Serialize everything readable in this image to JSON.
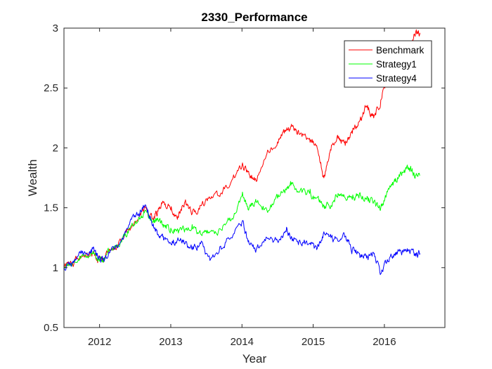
{
  "chart_data": {
    "type": "line",
    "title": "2330_Performance",
    "xlabel": "Year",
    "ylabel": "Wealth",
    "xlim": [
      2011.5,
      2016.85
    ],
    "ylim": [
      0.5,
      3
    ],
    "xticks": [
      2012,
      2013,
      2014,
      2015,
      2016
    ],
    "yticks": [
      0.5,
      1,
      1.5,
      2,
      2.5,
      3
    ],
    "xtick_labels": [
      "2012",
      "2013",
      "2014",
      "2015",
      "2016"
    ],
    "ytick_labels": [
      "0.5",
      "1",
      "1.5",
      "2",
      "2.5",
      "3"
    ],
    "grid": false,
    "legend_position": "top-right",
    "series": [
      {
        "name": "Benchmark",
        "color": "#ff0000",
        "x": [
          2011.5,
          2011.62,
          2011.75,
          2011.88,
          2011.96,
          2012.05,
          2012.15,
          2012.3,
          2012.42,
          2012.55,
          2012.65,
          2012.75,
          2012.82,
          2012.9,
          2013.0,
          2013.1,
          2013.2,
          2013.3,
          2013.42,
          2013.55,
          2013.7,
          2013.85,
          2014.0,
          2014.1,
          2014.2,
          2014.35,
          2014.5,
          2014.62,
          2014.7,
          2014.8,
          2014.95,
          2015.05,
          2015.15,
          2015.25,
          2015.35,
          2015.45,
          2015.55,
          2015.65,
          2015.75,
          2015.85,
          2015.95,
          2016.05,
          2016.15,
          2016.25,
          2016.35,
          2016.42,
          2016.5
        ],
        "y": [
          1.0,
          1.04,
          1.1,
          1.13,
          1.06,
          1.08,
          1.14,
          1.22,
          1.33,
          1.42,
          1.5,
          1.4,
          1.47,
          1.55,
          1.48,
          1.43,
          1.55,
          1.45,
          1.52,
          1.58,
          1.62,
          1.72,
          1.85,
          1.78,
          1.72,
          1.95,
          2.05,
          2.15,
          2.18,
          2.12,
          2.08,
          2.02,
          1.75,
          1.98,
          2.08,
          2.02,
          2.12,
          2.22,
          2.35,
          2.25,
          2.4,
          2.6,
          2.65,
          2.7,
          2.82,
          2.95,
          2.96
        ]
      },
      {
        "name": "Strategy1",
        "color": "#00ff00",
        "x": [
          2011.5,
          2011.62,
          2011.75,
          2011.88,
          2011.96,
          2012.05,
          2012.15,
          2012.3,
          2012.42,
          2012.55,
          2012.65,
          2012.75,
          2012.82,
          2012.9,
          2013.0,
          2013.1,
          2013.2,
          2013.3,
          2013.42,
          2013.55,
          2013.7,
          2013.85,
          2014.0,
          2014.1,
          2014.2,
          2014.35,
          2014.5,
          2014.62,
          2014.7,
          2014.8,
          2014.95,
          2015.05,
          2015.15,
          2015.25,
          2015.35,
          2015.45,
          2015.55,
          2015.65,
          2015.75,
          2015.85,
          2015.95,
          2016.05,
          2016.15,
          2016.25,
          2016.35,
          2016.42,
          2016.5
        ],
        "y": [
          1.0,
          1.04,
          1.1,
          1.13,
          1.08,
          1.08,
          1.14,
          1.22,
          1.33,
          1.42,
          1.48,
          1.38,
          1.4,
          1.36,
          1.33,
          1.32,
          1.32,
          1.36,
          1.28,
          1.3,
          1.32,
          1.4,
          1.6,
          1.5,
          1.55,
          1.48,
          1.58,
          1.65,
          1.7,
          1.63,
          1.62,
          1.58,
          1.52,
          1.52,
          1.62,
          1.58,
          1.57,
          1.62,
          1.57,
          1.55,
          1.5,
          1.65,
          1.72,
          1.8,
          1.83,
          1.77,
          1.77
        ]
      },
      {
        "name": "Strategy4",
        "color": "#0000ff",
        "x": [
          2011.5,
          2011.62,
          2011.75,
          2011.88,
          2011.96,
          2012.05,
          2012.15,
          2012.3,
          2012.42,
          2012.55,
          2012.65,
          2012.75,
          2012.82,
          2012.9,
          2013.0,
          2013.1,
          2013.2,
          2013.3,
          2013.42,
          2013.55,
          2013.7,
          2013.85,
          2014.0,
          2014.1,
          2014.2,
          2014.35,
          2014.5,
          2014.62,
          2014.7,
          2014.8,
          2014.95,
          2015.05,
          2015.15,
          2015.25,
          2015.35,
          2015.45,
          2015.55,
          2015.65,
          2015.75,
          2015.85,
          2015.95,
          2016.05,
          2016.15,
          2016.25,
          2016.35,
          2016.42,
          2016.5
        ],
        "y": [
          1.0,
          1.04,
          1.12,
          1.15,
          1.1,
          1.08,
          1.14,
          1.22,
          1.36,
          1.45,
          1.52,
          1.35,
          1.28,
          1.23,
          1.2,
          1.25,
          1.2,
          1.15,
          1.2,
          1.06,
          1.18,
          1.25,
          1.38,
          1.2,
          1.15,
          1.25,
          1.22,
          1.3,
          1.25,
          1.22,
          1.2,
          1.15,
          1.3,
          1.25,
          1.22,
          1.26,
          1.15,
          1.12,
          1.08,
          1.12,
          0.95,
          1.05,
          1.1,
          1.13,
          1.15,
          1.1,
          1.12
        ]
      }
    ]
  }
}
